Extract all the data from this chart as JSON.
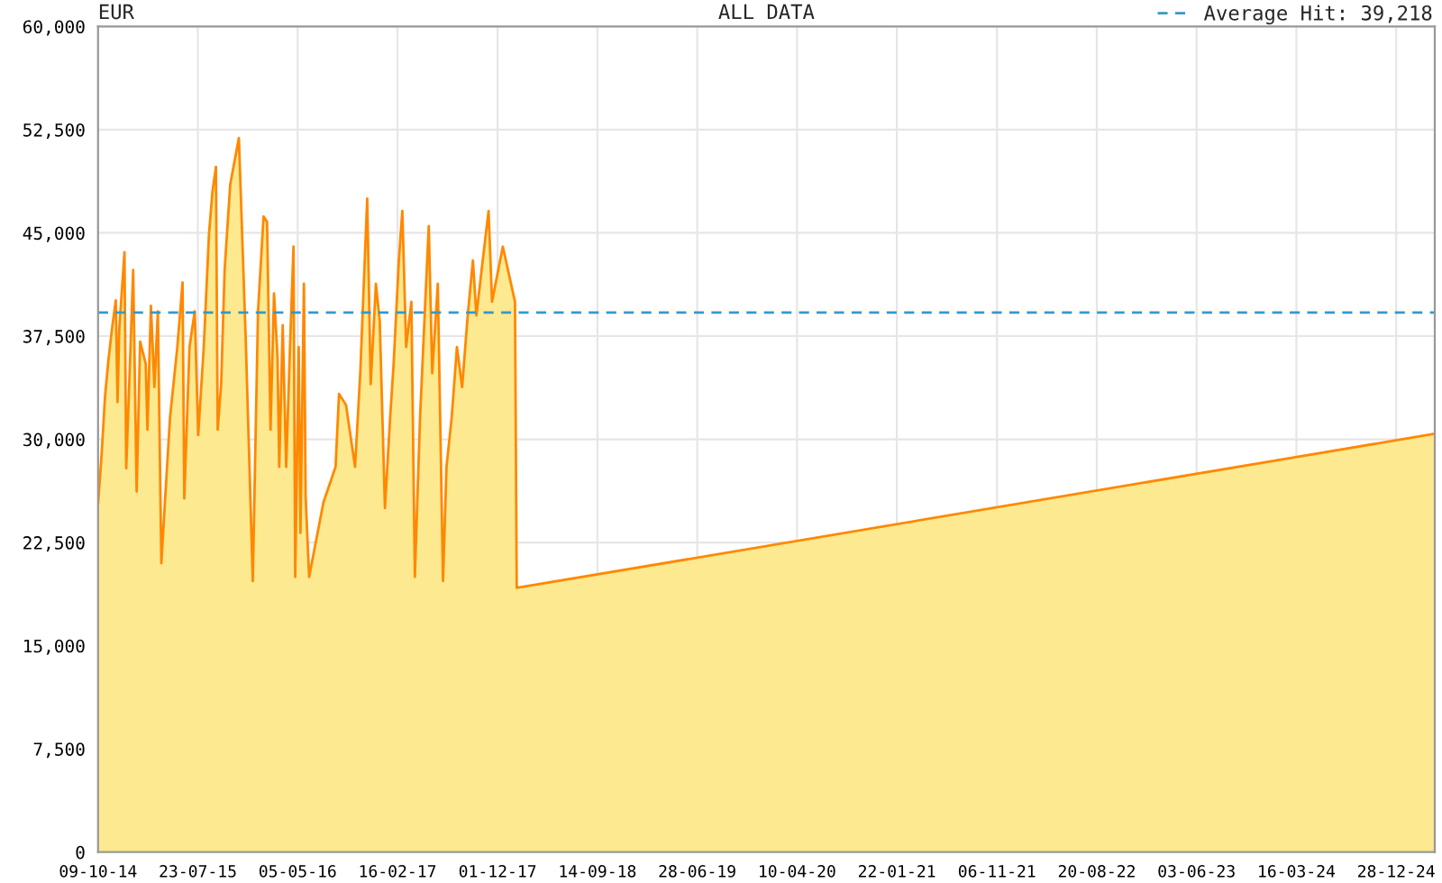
{
  "chart_data": {
    "type": "area",
    "title": "ALL DATA",
    "subtitle": "EUR",
    "x": [
      "2014-10-09",
      "2014-10-19",
      "2014-10-29",
      "2014-11-08",
      "2014-11-18",
      "2014-11-29",
      "2014-12-04",
      "2014-12-09",
      "2014-12-24",
      "2014-12-29",
      "2015-01-08",
      "2015-01-18",
      "2015-01-28",
      "2015-02-07",
      "2015-02-23",
      "2015-02-28",
      "2015-03-10",
      "2015-03-20",
      "2015-03-30",
      "2015-04-09",
      "2015-04-19",
      "2015-05-04",
      "2015-05-25",
      "2015-06-09",
      "2015-06-14",
      "2015-06-29",
      "2015-07-14",
      "2015-07-24",
      "2015-08-09",
      "2015-08-24",
      "2015-09-03",
      "2015-09-13",
      "2015-09-18",
      "2015-09-28",
      "2015-10-08",
      "2015-10-24",
      "2015-11-18",
      "2015-12-08",
      "2015-12-28",
      "2016-01-12",
      "2016-01-28",
      "2016-02-07",
      "2016-02-17",
      "2016-02-27",
      "2016-03-08",
      "2016-03-13",
      "2016-03-23",
      "2016-04-02",
      "2016-04-13",
      "2016-04-23",
      "2016-04-28",
      "2016-05-08",
      "2016-05-13",
      "2016-05-23",
      "2016-05-28",
      "2016-06-07",
      "2016-07-18",
      "2016-08-22",
      "2016-09-01",
      "2016-09-21",
      "2016-10-17",
      "2016-11-01",
      "2016-11-21",
      "2016-12-01",
      "2016-12-16",
      "2016-12-27",
      "2017-01-11",
      "2017-01-26",
      "2017-02-05",
      "2017-02-20",
      "2017-03-02",
      "2017-03-13",
      "2017-03-28",
      "2017-04-07",
      "2017-04-22",
      "2017-05-07",
      "2017-05-17",
      "2017-05-27",
      "2017-06-12",
      "2017-06-27",
      "2017-07-07",
      "2017-07-22",
      "2017-08-06",
      "2017-08-21",
      "2017-09-06",
      "2017-09-21",
      "2017-10-01",
      "2017-10-16",
      "2017-11-05",
      "2017-11-15",
      "2017-12-16",
      "2018-01-20",
      "2018-01-25",
      "2025-04-18"
    ],
    "series": [
      {
        "color": "#ff8800",
        "values": [
          25300,
          28800,
          33100,
          35800,
          38000,
          40100,
          32700,
          38000,
          43600,
          27900,
          35000,
          42300,
          26200,
          37100,
          35500,
          30700,
          39700,
          33800,
          39300,
          21000,
          25300,
          31600,
          36700,
          41400,
          25700,
          36700,
          39300,
          30300,
          36700,
          44900,
          48000,
          49800,
          30700,
          34000,
          42300,
          48500,
          51900,
          37000,
          19700,
          39300,
          46200,
          45800,
          30700,
          40600,
          36000,
          28000,
          38300,
          28000,
          36700,
          44000,
          20000,
          36700,
          23200,
          41300,
          25800,
          20000,
          25400,
          28000,
          33300,
          32500,
          28000,
          34800,
          47500,
          34000,
          41300,
          38600,
          25000,
          31600,
          35500,
          43000,
          46600,
          36700,
          40000,
          20000,
          31600,
          40000,
          45500,
          34800,
          41300,
          19700,
          28000,
          31600,
          36700,
          33800,
          39000,
          43000,
          39000,
          42300,
          46600,
          40000,
          44000,
          40000,
          19200,
          30400
        ]
      }
    ],
    "xlim": [
      "2014-10-09",
      "2025-04-18"
    ],
    "xticks": [
      {
        "value": "2014-10-09",
        "label": "09-10-14"
      },
      {
        "value": "2015-07-23",
        "label": "23-07-15"
      },
      {
        "value": "2016-05-05",
        "label": "05-05-16"
      },
      {
        "value": "2017-02-16",
        "label": "16-02-17"
      },
      {
        "value": "2017-12-01",
        "label": "01-12-17"
      },
      {
        "value": "2018-09-14",
        "label": "14-09-18"
      },
      {
        "value": "2019-06-28",
        "label": "28-06-19"
      },
      {
        "value": "2020-04-10",
        "label": "10-04-20"
      },
      {
        "value": "2021-01-22",
        "label": "22-01-21"
      },
      {
        "value": "2021-11-06",
        "label": "06-11-21"
      },
      {
        "value": "2022-08-20",
        "label": "20-08-22"
      },
      {
        "value": "2023-06-03",
        "label": "03-06-23"
      },
      {
        "value": "2024-03-16",
        "label": "16-03-24"
      },
      {
        "value": "2024-12-28",
        "label": "28-12-24"
      }
    ],
    "ylim": [
      0,
      60000
    ],
    "yticks": [
      {
        "value": 0,
        "label": "0"
      },
      {
        "value": 7500,
        "label": "7,500"
      },
      {
        "value": 15000,
        "label": "15,000"
      },
      {
        "value": 22500,
        "label": "22,500"
      },
      {
        "value": 30000,
        "label": "30,000"
      },
      {
        "value": 37500,
        "label": "37,500"
      },
      {
        "value": 45000,
        "label": "45,000"
      },
      {
        "value": 52500,
        "label": "52,500"
      },
      {
        "value": 60000,
        "label": "60,000"
      }
    ],
    "ref_lines": [
      {
        "axis": "y",
        "value": 39218,
        "label": "Average Hit: 39,218",
        "color": "#3399cc",
        "line_style": "dashed"
      }
    ],
    "grid": true,
    "legend": "top right"
  }
}
